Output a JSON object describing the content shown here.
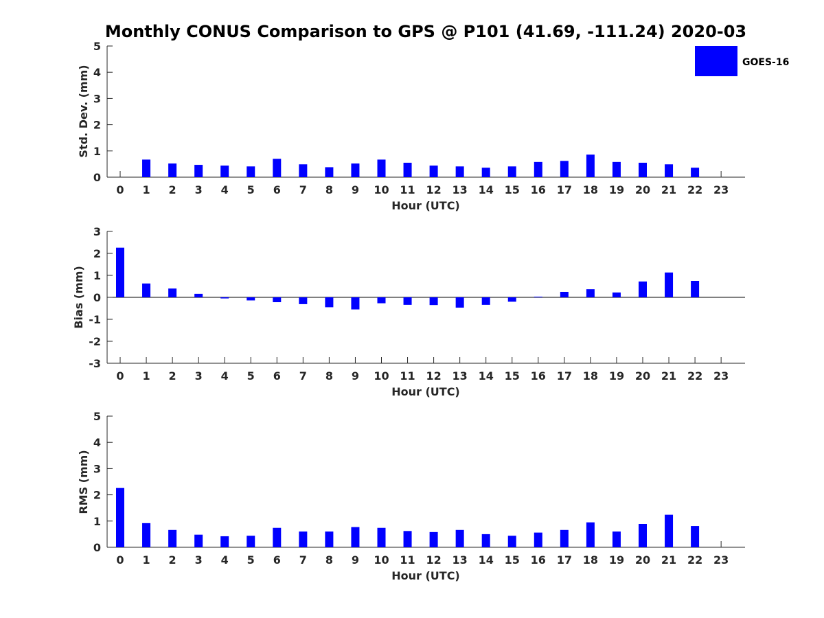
{
  "figure": {
    "title": "Monthly CONUS Comparison to GPS @ P101 (41.69, -111.24) 2020-03"
  },
  "legend": {
    "label": "GOES-16",
    "color": "#0000ff",
    "placement": "top-right"
  },
  "chart_data": [
    {
      "type": "bar",
      "xlabel": "Hour (UTC)",
      "ylabel": "Std. Dev. (mm)",
      "ylim": [
        0,
        5
      ],
      "yticks": [
        0,
        1,
        2,
        3,
        4,
        5
      ],
      "categories": [
        "0",
        "1",
        "2",
        "3",
        "4",
        "5",
        "6",
        "7",
        "8",
        "9",
        "10",
        "11",
        "12",
        "13",
        "14",
        "15",
        "16",
        "17",
        "18",
        "19",
        "20",
        "21",
        "22",
        "23"
      ],
      "series": [
        {
          "name": "GOES-16",
          "color": "#0000ff",
          "values": [
            null,
            0.67,
            0.52,
            0.47,
            0.44,
            0.41,
            0.7,
            0.49,
            0.38,
            0.52,
            0.67,
            0.55,
            0.44,
            0.41,
            0.36,
            0.41,
            0.58,
            0.62,
            0.86,
            0.58,
            0.55,
            0.49,
            0.36,
            null
          ]
        }
      ]
    },
    {
      "type": "bar",
      "xlabel": "Hour (UTC)",
      "ylabel": "Bias (mm)",
      "ylim": [
        -3,
        3
      ],
      "yticks": [
        -3,
        -2,
        -1,
        0,
        1,
        2,
        3
      ],
      "zero_line": true,
      "categories": [
        "0",
        "1",
        "2",
        "3",
        "4",
        "5",
        "6",
        "7",
        "8",
        "9",
        "10",
        "11",
        "12",
        "13",
        "14",
        "15",
        "16",
        "17",
        "18",
        "19",
        "20",
        "21",
        "22",
        "23"
      ],
      "series": [
        {
          "name": "GOES-16",
          "color": "#0000ff",
          "values": [
            2.26,
            0.63,
            0.4,
            0.16,
            -0.05,
            -0.14,
            -0.22,
            -0.31,
            -0.45,
            -0.55,
            -0.27,
            -0.34,
            -0.35,
            -0.47,
            -0.34,
            -0.2,
            0.03,
            0.25,
            0.37,
            0.22,
            0.72,
            1.13,
            0.75,
            null
          ]
        }
      ]
    },
    {
      "type": "bar",
      "xlabel": "Hour (UTC)",
      "ylabel": "RMS (mm)",
      "ylim": [
        0,
        5
      ],
      "yticks": [
        0,
        1,
        2,
        3,
        4,
        5
      ],
      "categories": [
        "0",
        "1",
        "2",
        "3",
        "4",
        "5",
        "6",
        "7",
        "8",
        "9",
        "10",
        "11",
        "12",
        "13",
        "14",
        "15",
        "16",
        "17",
        "18",
        "19",
        "20",
        "21",
        "22",
        "23"
      ],
      "series": [
        {
          "name": "GOES-16",
          "color": "#0000ff",
          "values": [
            2.26,
            0.92,
            0.66,
            0.48,
            0.42,
            0.44,
            0.74,
            0.6,
            0.6,
            0.77,
            0.74,
            0.62,
            0.58,
            0.66,
            0.5,
            0.44,
            0.56,
            0.66,
            0.95,
            0.6,
            0.89,
            1.24,
            0.81,
            null
          ]
        }
      ]
    }
  ]
}
